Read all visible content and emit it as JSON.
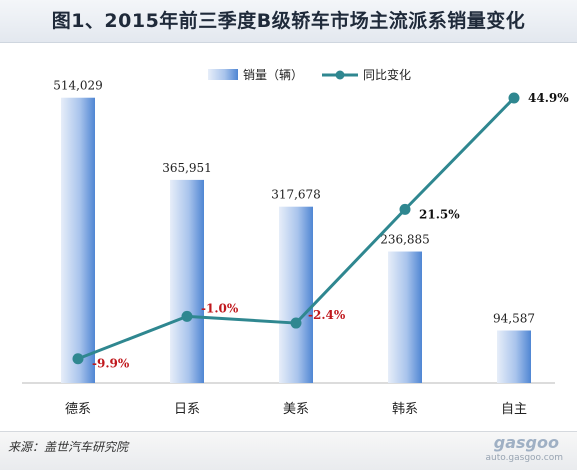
{
  "header": {
    "title": "图1、2015年前三季度B级轿车市场主流派系销量变化"
  },
  "footer": {
    "source": "来源：盖世汽车研究院",
    "watermark_logo": "gasgoo",
    "watermark_url": "auto.gasgoo.com"
  },
  "chart_data": {
    "type": "bar",
    "categories": [
      "德系",
      "日系",
      "美系",
      "韩系",
      "自主"
    ],
    "series": [
      {
        "name": "销量（辆）",
        "type": "bar",
        "values": [
          514029,
          365951,
          317678,
          236885,
          94587
        ],
        "labels": [
          "514,029",
          "365,951",
          "317,678",
          "236,885",
          "94,587"
        ],
        "color": "#5b8ed6"
      },
      {
        "name": "同比变化",
        "type": "line",
        "values": [
          -9.9,
          -1.0,
          -2.4,
          21.5,
          44.9
        ],
        "labels": [
          "-9.9%",
          "-1.0%",
          "-2.4%",
          "21.5%",
          "44.9%"
        ],
        "color": "#2f8790",
        "negative_label_color": "#c0181d",
        "positive_label_color": "#111111"
      }
    ],
    "y_left_range": [
      0,
      600000
    ],
    "y_right_range": [
      -15,
      55
    ],
    "grid": false,
    "legend_position": "top-center"
  }
}
